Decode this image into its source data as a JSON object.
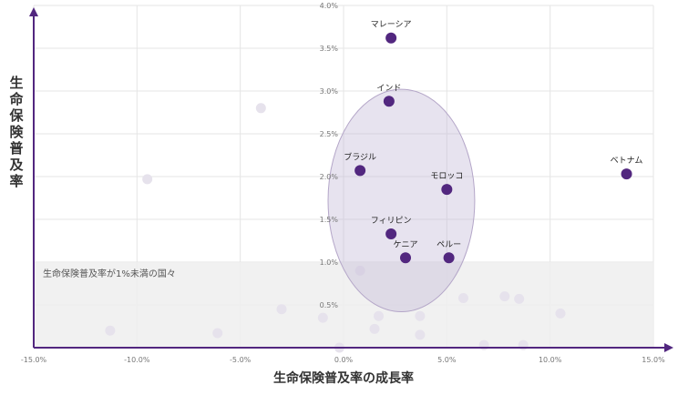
{
  "chart_data": {
    "type": "scatter",
    "xlabel": "生命保険普及率の成長率",
    "ylabel": "生命保険普及率",
    "xlim": [
      -15,
      15
    ],
    "ylim": [
      0,
      4
    ],
    "x_ticks": [
      "-15.0%",
      "-10.0%",
      "-5.0%",
      "0.0%",
      "5.0%",
      "10.0%",
      "15.0%"
    ],
    "y_ticks": [
      "0.5%",
      "1.0%",
      "1.5%",
      "2.0%",
      "2.5%",
      "3.0%",
      "3.5%",
      "4.0%"
    ],
    "grid": true,
    "band": {
      "label": "生命保険普及率が1%未満の国々",
      "y_max": 1.0
    },
    "highlight_circle": {
      "cx": 2.8,
      "cy": 1.72,
      "rx": 7.1,
      "ry": 1.3
    },
    "highlighted_points": [
      {
        "label": "マレーシア",
        "x": 2.3,
        "y": 3.62
      },
      {
        "label": "インド",
        "x": 2.2,
        "y": 2.88
      },
      {
        "label": "ブラジル",
        "x": 0.8,
        "y": 2.07
      },
      {
        "label": "モロッコ",
        "x": 5.0,
        "y": 1.85
      },
      {
        "label": "ベトナム",
        "x": 13.7,
        "y": 2.03
      },
      {
        "label": "フィリピン",
        "x": 2.3,
        "y": 1.33
      },
      {
        "label": "ケニア",
        "x": 3.0,
        "y": 1.05
      },
      {
        "label": "ペルー",
        "x": 5.1,
        "y": 1.05
      }
    ],
    "background_points": [
      {
        "x": -9.5,
        "y": 1.97
      },
      {
        "x": -4.0,
        "y": 2.8
      },
      {
        "x": 0.8,
        "y": 0.9
      },
      {
        "x": -11.3,
        "y": 0.2
      },
      {
        "x": -6.1,
        "y": 0.17
      },
      {
        "x": -3.0,
        "y": 0.45
      },
      {
        "x": -1.0,
        "y": 0.35
      },
      {
        "x": 1.5,
        "y": 0.22
      },
      {
        "x": 1.7,
        "y": 0.37
      },
      {
        "x": 3.7,
        "y": 0.37
      },
      {
        "x": 3.7,
        "y": 0.15
      },
      {
        "x": 5.8,
        "y": 0.58
      },
      {
        "x": 6.8,
        "y": 0.03
      },
      {
        "x": 7.8,
        "y": 0.6
      },
      {
        "x": 8.5,
        "y": 0.57
      },
      {
        "x": 8.7,
        "y": 0.03
      },
      {
        "x": 10.5,
        "y": 0.4
      },
      {
        "x": -0.2,
        "y": 0.0
      }
    ],
    "colors": {
      "point": "#52277f",
      "axis": "#52277f",
      "circle_fill": "#c4b9d6",
      "circle_stroke": "#b4a6c8",
      "band": "#eeeeee",
      "background_point": "#e6e2ec",
      "grid": "#e5e5e5"
    }
  }
}
